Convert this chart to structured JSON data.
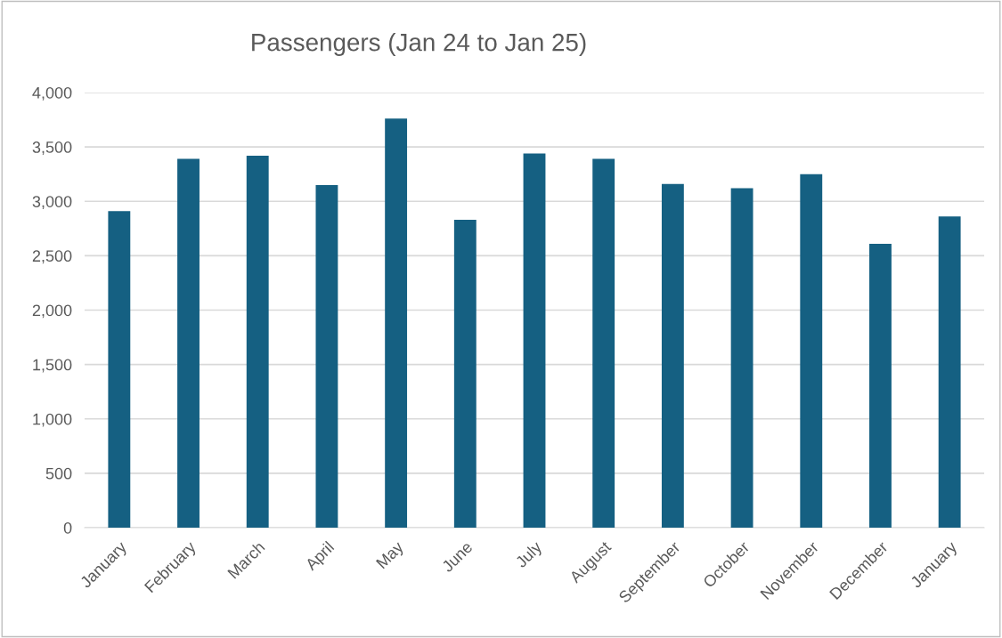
{
  "chart_data": {
    "type": "bar",
    "title": "Passengers (Jan 24 to Jan 25)",
    "categories": [
      "January",
      "February",
      "March",
      "April",
      "May",
      "June",
      "July",
      "August",
      "September",
      "October",
      "November",
      "December",
      "January"
    ],
    "values": [
      2910,
      3390,
      3420,
      3150,
      3760,
      2830,
      3440,
      3390,
      3160,
      3120,
      3250,
      2610,
      2860
    ],
    "color": "#156082",
    "ylim": [
      0,
      4000
    ],
    "yticks": [
      {
        "value": 0,
        "label": "0"
      },
      {
        "value": 500,
        "label": "500"
      },
      {
        "value": 1000,
        "label": "1,000"
      },
      {
        "value": 1500,
        "label": "1,500"
      },
      {
        "value": 2000,
        "label": "2,000"
      },
      {
        "value": 2500,
        "label": "2,500"
      },
      {
        "value": 3000,
        "label": "3,000"
      },
      {
        "value": 3500,
        "label": "3,500"
      },
      {
        "value": 4000,
        "label": "4,000"
      }
    ],
    "grid": "y"
  }
}
